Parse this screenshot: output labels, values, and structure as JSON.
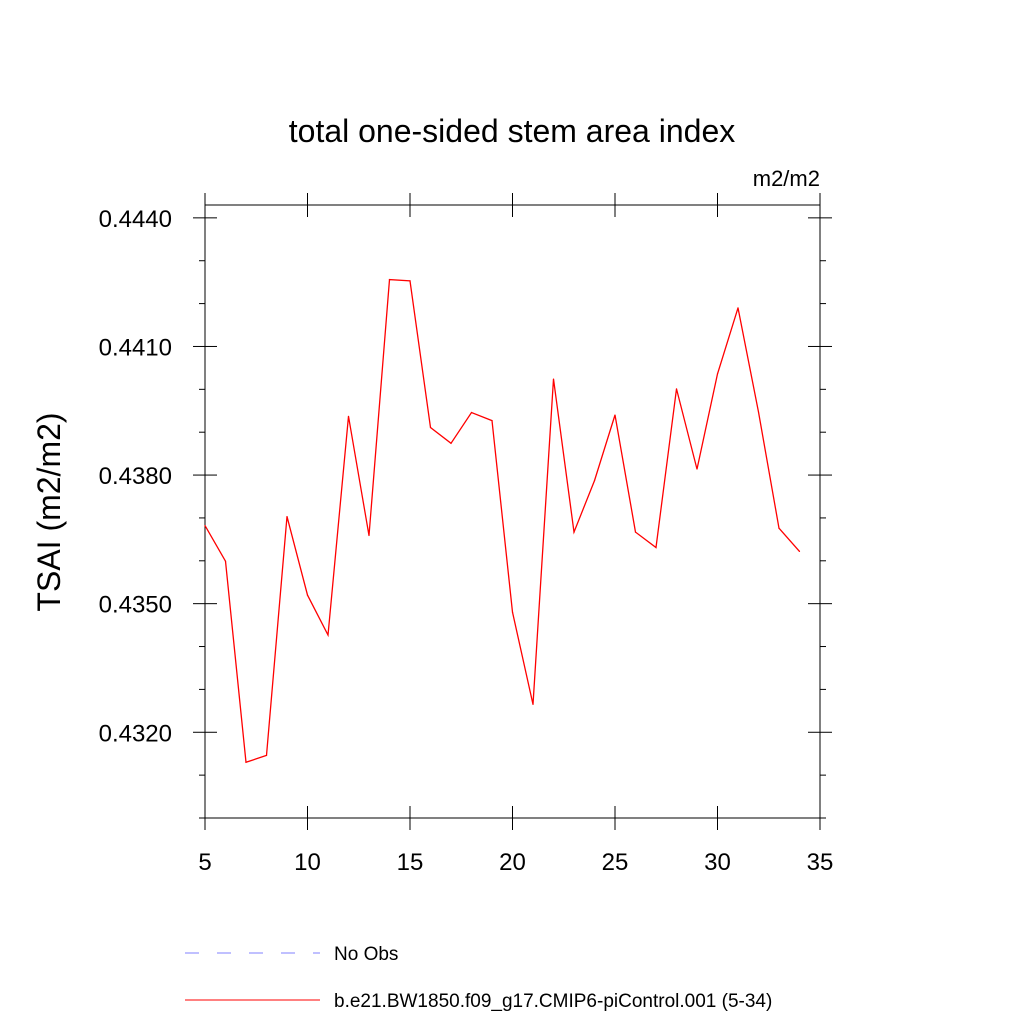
{
  "chart_data": {
    "type": "line",
    "title": "total one-sided stem area index",
    "units_label": "m2/m2",
    "ylabel": "TSAI  (m2/m2)",
    "xlabel": "",
    "xlim": [
      5,
      35
    ],
    "ylim": [
      0.43,
      0.4443
    ],
    "x_ticks": [
      5,
      10,
      15,
      20,
      25,
      30,
      35
    ],
    "y_ticks": [
      0.432,
      0.435,
      0.438,
      0.441,
      0.444
    ],
    "y_tick_labels": [
      "0.4320",
      "0.4350",
      "0.4380",
      "0.4410",
      "0.4440"
    ],
    "grid": false,
    "legend_position": "bottom",
    "series": [
      {
        "name": "No Obs",
        "color": "#8080ff",
        "dash": "dashed",
        "x": [],
        "y": []
      },
      {
        "name": "b.e21.BW1850.f09_g17.CMIP6-piControl.001 (5-34)",
        "color": "#ff0000",
        "dash": "solid",
        "x": [
          5,
          6,
          7,
          8,
          9,
          10,
          11,
          12,
          13,
          14,
          15,
          16,
          17,
          18,
          19,
          20,
          21,
          22,
          23,
          24,
          25,
          26,
          27,
          28,
          29,
          30,
          31,
          32,
          33,
          34
        ],
        "y": [
          0.43682,
          0.43599,
          0.4313,
          0.43146,
          0.43703,
          0.4352,
          0.43427,
          0.43937,
          0.43659,
          0.44256,
          0.44253,
          0.43911,
          0.43874,
          0.43946,
          0.43927,
          0.4348,
          0.43265,
          0.44024,
          0.43667,
          0.43787,
          0.4394,
          0.43667,
          0.43631,
          0.44001,
          0.43814,
          0.44036,
          0.4419,
          0.43947,
          0.43676,
          0.43622
        ]
      }
    ]
  }
}
